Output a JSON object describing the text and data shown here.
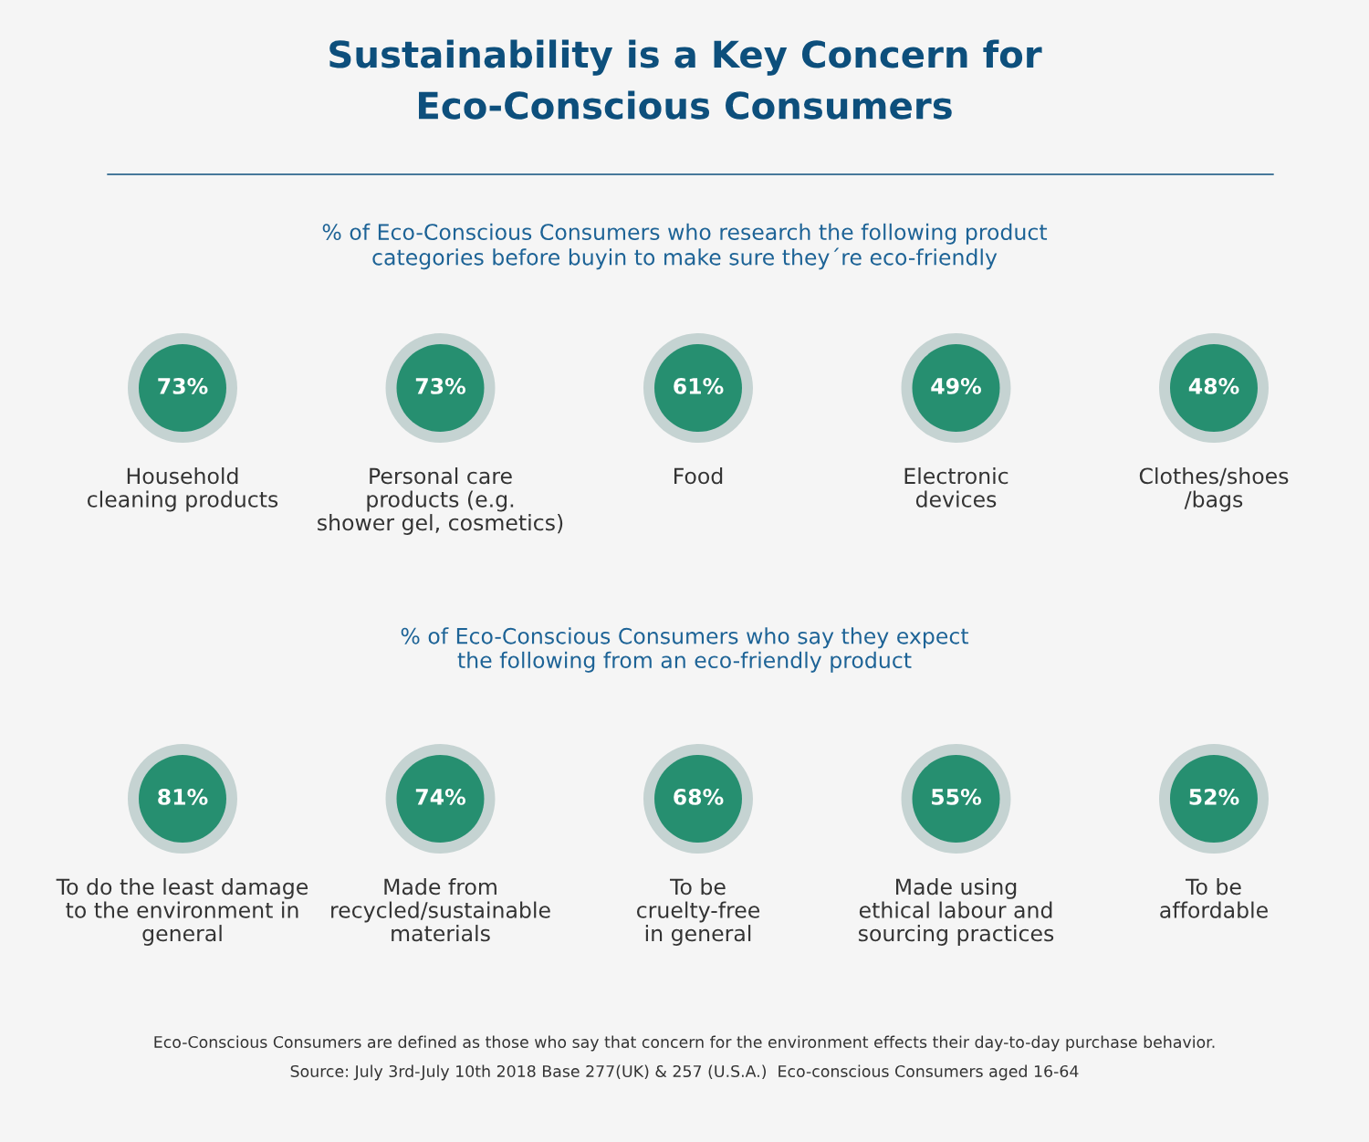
{
  "chart_data": [
    {
      "type": "other",
      "title": "Sustainability is a Key Concern for\nEco-Conscious Consumers",
      "subtitle": "% of Eco-Conscious Consumers who research the following product\ncategories before buyin to make sure they´re eco-friendly",
      "categories": [
        "Household\ncleaning products",
        "Personal care\nproducts (e.g.\nshower gel, cosmetics)",
        "Food",
        "Electronic\ndevices",
        "Clothes/shoes\n/bags"
      ],
      "values": [
        73,
        73,
        61,
        49,
        48
      ],
      "value_labels": [
        "73%",
        "73%",
        "61%",
        "49%",
        "48%"
      ],
      "color": "#268f70"
    },
    {
      "type": "other",
      "subtitle": "% of Eco-Conscious Consumers who say they expect\nthe following from an eco-friendly product",
      "categories": [
        "To do the least damage\nto the environment in\ngeneral",
        "Made from\nrecycled/sustainable\nmaterials",
        "To be\ncruelty-free\nin general",
        "Made using\nethical labour and\nsourcing practices",
        "To be\naffordable"
      ],
      "values": [
        81,
        74,
        68,
        55,
        52
      ],
      "value_labels": [
        "81%",
        "74%",
        "68%",
        "55%",
        "52%"
      ],
      "color": "#268f70",
      "annotations": [
        "Eco-Conscious Consumers are defined as those who say that concern for the environment effects their day-to-day purchase behavior.",
        "Source: July 3rd-July 10th 2018 Base 277(UK) & 257 (U.S.A.)  Eco-conscious Consumers aged 16-64"
      ]
    }
  ]
}
